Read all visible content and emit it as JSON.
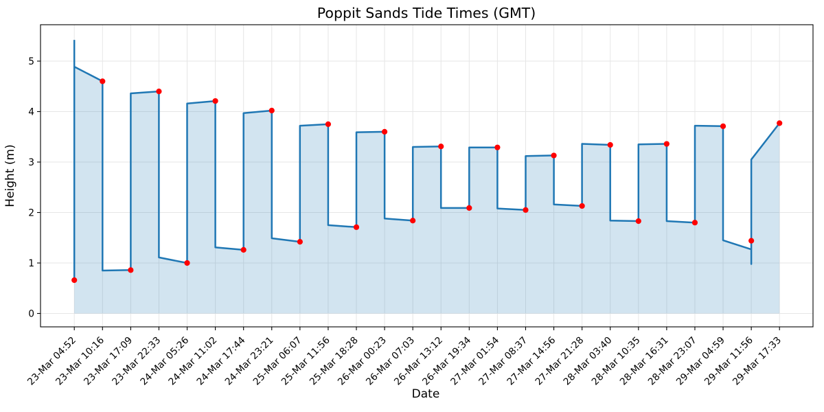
{
  "title": "Poppit Sands Tide Times (GMT)",
  "axes": {
    "xlabel": "Date",
    "ylabel": "Height (m)"
  },
  "chart_data": {
    "type": "area",
    "title": "Poppit Sands Tide Times (GMT)",
    "xlabel": "Date",
    "ylabel": "Height (m)",
    "y_ticks": [
      0,
      1,
      2,
      3,
      4,
      5
    ],
    "ylim": [
      -0.27,
      5.69
    ],
    "grid": true,
    "legend": "none",
    "line_color": "#1f77b4",
    "fill_color": "rgba(31,119,180,0.2)",
    "marker_color": "#ff0000",
    "grid_color": "#e6e6e6",
    "events": [
      {
        "time": "23-Mar 04:52",
        "height": 0.66
      },
      {
        "time": "23-Mar 10:16",
        "height": 4.6
      },
      {
        "time": "23-Mar 17:09",
        "height": 0.86
      },
      {
        "time": "23-Mar 22:33",
        "height": 4.4
      },
      {
        "time": "24-Mar 05:26",
        "height": 1.0
      },
      {
        "time": "24-Mar 11:02",
        "height": 4.21
      },
      {
        "time": "24-Mar 17:44",
        "height": 1.26
      },
      {
        "time": "24-Mar 23:21",
        "height": 4.02
      },
      {
        "time": "25-Mar 06:07",
        "height": 1.42
      },
      {
        "time": "25-Mar 11:56",
        "height": 3.75
      },
      {
        "time": "25-Mar 18:28",
        "height": 1.71
      },
      {
        "time": "26-Mar 00:23",
        "height": 3.6
      },
      {
        "time": "26-Mar 07:03",
        "height": 1.84
      },
      {
        "time": "26-Mar 13:12",
        "height": 3.31
      },
      {
        "time": "26-Mar 19:34",
        "height": 2.09
      },
      {
        "time": "27-Mar 01:54",
        "height": 3.29
      },
      {
        "time": "27-Mar 08:37",
        "height": 2.05
      },
      {
        "time": "27-Mar 14:56",
        "height": 3.13
      },
      {
        "time": "27-Mar 21:28",
        "height": 2.13
      },
      {
        "time": "28-Mar 03:40",
        "height": 3.34
      },
      {
        "time": "28-Mar 10:35",
        "height": 1.83
      },
      {
        "time": "28-Mar 16:31",
        "height": 3.36
      },
      {
        "time": "28-Mar 23:07",
        "height": 1.8
      },
      {
        "time": "29-Mar 04:59",
        "height": 3.71
      },
      {
        "time": "29-Mar 11:56",
        "height": 1.44
      },
      {
        "time": "29-Mar 17:33",
        "height": 3.77
      }
    ],
    "line_points": [
      [
        0,
        5.42
      ],
      [
        0,
        0.66
      ],
      [
        0,
        4.89
      ],
      [
        1,
        4.6
      ],
      [
        1,
        0.85
      ],
      [
        2,
        0.86
      ],
      [
        2,
        4.36
      ],
      [
        3,
        4.4
      ],
      [
        3,
        1.11
      ],
      [
        4,
        1.0
      ],
      [
        4,
        4.16
      ],
      [
        5,
        4.21
      ],
      [
        5,
        1.31
      ],
      [
        6,
        1.26
      ],
      [
        6,
        3.97
      ],
      [
        7,
        4.02
      ],
      [
        7,
        1.49
      ],
      [
        8,
        1.42
      ],
      [
        8,
        3.72
      ],
      [
        9,
        3.75
      ],
      [
        9,
        1.75
      ],
      [
        10,
        1.71
      ],
      [
        10,
        3.59
      ],
      [
        11,
        3.6
      ],
      [
        11,
        1.88
      ],
      [
        12,
        1.84
      ],
      [
        12,
        3.3
      ],
      [
        13,
        3.31
      ],
      [
        13,
        2.09
      ],
      [
        14,
        2.09
      ],
      [
        14,
        3.29
      ],
      [
        15,
        3.29
      ],
      [
        15,
        2.08
      ],
      [
        16,
        2.05
      ],
      [
        16,
        3.12
      ],
      [
        17,
        3.13
      ],
      [
        17,
        2.16
      ],
      [
        18,
        2.13
      ],
      [
        18,
        3.36
      ],
      [
        19,
        3.34
      ],
      [
        19,
        1.84
      ],
      [
        20,
        1.83
      ],
      [
        20,
        3.35
      ],
      [
        21,
        3.36
      ],
      [
        21,
        1.83
      ],
      [
        22,
        1.8
      ],
      [
        22,
        3.72
      ],
      [
        23,
        3.71
      ],
      [
        23,
        1.45
      ],
      [
        24,
        1.27
      ],
      [
        24,
        0.98
      ],
      [
        24,
        3.05
      ],
      [
        25,
        3.77
      ]
    ]
  }
}
